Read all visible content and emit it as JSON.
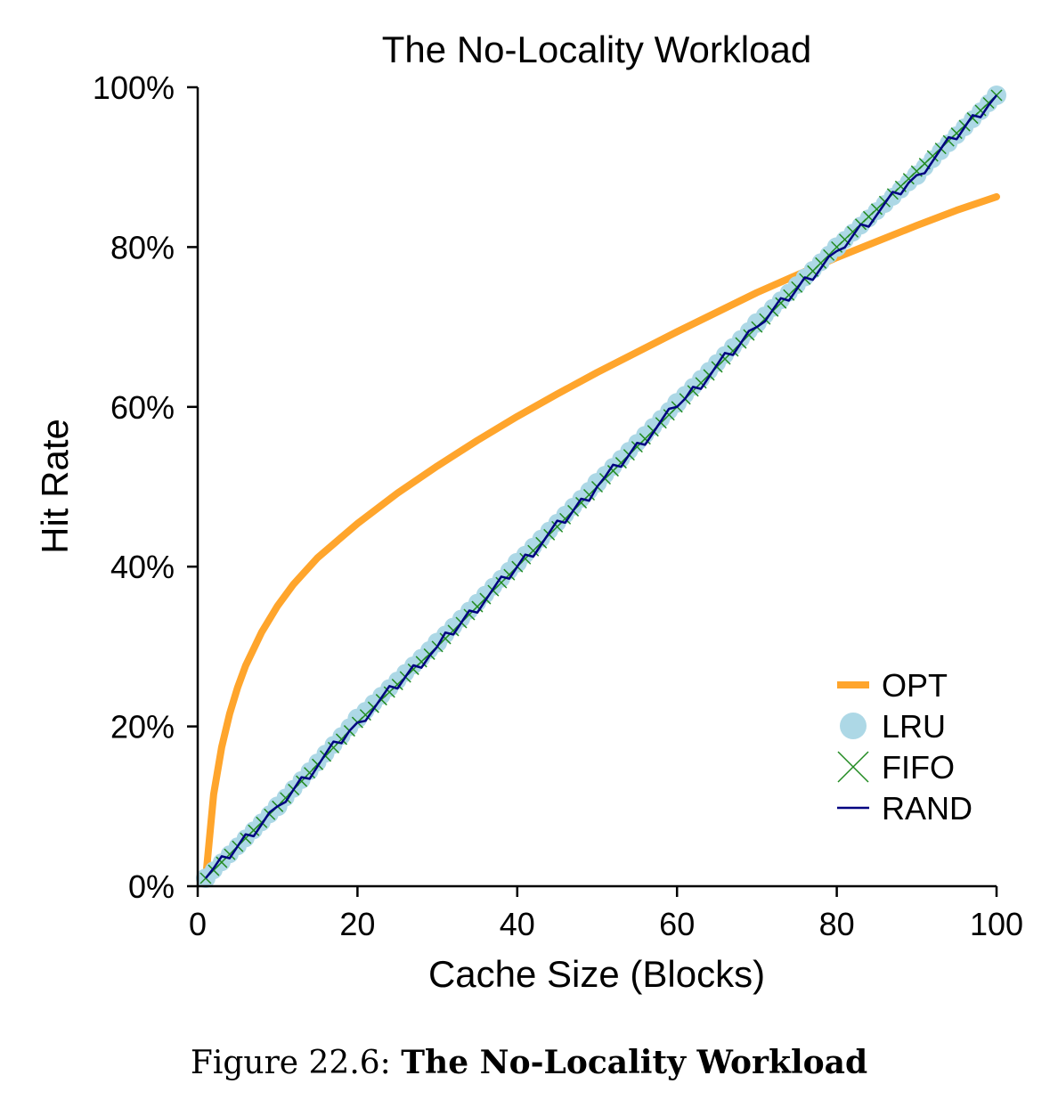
{
  "chart_data": {
    "type": "line",
    "title": "The No-Locality Workload",
    "xlabel": "Cache Size (Blocks)",
    "ylabel": "Hit Rate",
    "xlim": [
      0,
      100
    ],
    "ylim": [
      0,
      100
    ],
    "x_ticks": [
      0,
      20,
      40,
      60,
      80,
      100
    ],
    "x_tick_labels": [
      "0",
      "20",
      "40",
      "60",
      "80",
      "100"
    ],
    "y_ticks": [
      0,
      20,
      40,
      60,
      80,
      100
    ],
    "y_tick_labels": [
      "0%",
      "20%",
      "40%",
      "60%",
      "80%",
      "100%"
    ],
    "grid": false,
    "legend_position": "lower-right",
    "series": [
      {
        "name": "OPT",
        "color": "#ffa52c",
        "marker": "thick-line",
        "x": [
          1,
          2,
          3,
          4,
          5,
          6,
          8,
          10,
          12,
          15,
          20,
          25,
          30,
          35,
          40,
          45,
          50,
          60,
          70,
          80,
          90,
          95,
          100
        ],
        "y": [
          1.0,
          11.5,
          17.4,
          21.6,
          24.9,
          27.6,
          31.8,
          35.1,
          37.8,
          41.1,
          45.4,
          49.2,
          52.6,
          55.8,
          58.8,
          61.6,
          64.3,
          69.4,
          74.3,
          78.7,
          82.7,
          84.6,
          86.3
        ]
      },
      {
        "name": "LRU",
        "color": "#add8e6",
        "marker": "circle",
        "x": [
          1,
          10,
          20,
          30,
          40,
          50,
          60,
          70,
          80,
          90,
          100
        ],
        "y": [
          1,
          10,
          21,
          30.5,
          40.5,
          50.5,
          60.5,
          70.5,
          80,
          89,
          99
        ]
      },
      {
        "name": "FIFO",
        "color": "#228b22",
        "marker": "x",
        "x": [
          1,
          10,
          20,
          30,
          40,
          50,
          60,
          70,
          80,
          90,
          100
        ],
        "y": [
          1,
          10,
          20.5,
          30,
          40,
          50,
          60,
          70,
          80,
          89.5,
          99
        ]
      },
      {
        "name": "RAND",
        "color": "#000080",
        "marker": "thin-line",
        "x": [
          1,
          10,
          20,
          30,
          40,
          50,
          60,
          70,
          80,
          90,
          100
        ],
        "y": [
          1,
          10,
          20.5,
          30,
          40,
          50,
          60,
          70,
          79.5,
          89,
          99
        ]
      }
    ]
  },
  "caption": {
    "prefix": "Figure 22.6: ",
    "title": "The No-Locality Workload"
  }
}
